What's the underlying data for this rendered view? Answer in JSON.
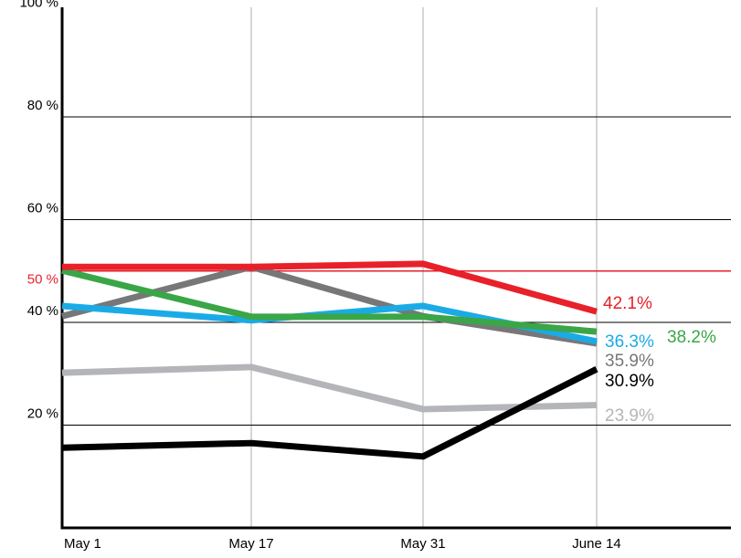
{
  "chart_data": {
    "type": "line",
    "categories": [
      "May 1",
      "May 17",
      "May 31",
      "June 14"
    ],
    "ylim": [
      0,
      100
    ],
    "yticks": [
      {
        "value": 20,
        "label": "20 %"
      },
      {
        "value": 40,
        "label": "40 %"
      },
      {
        "value": 60,
        "label": "60 %"
      },
      {
        "value": 80,
        "label": "80 %"
      },
      {
        "value": 100,
        "label": "100 %"
      }
    ],
    "grid": true,
    "reference_line": {
      "value": 50,
      "label": "50 %",
      "color": "#e8202a"
    },
    "series": [
      {
        "color": "#b3b5b8",
        "values": [
          30.2,
          31.3,
          23.1,
          23.9
        ],
        "value_labels": [
          null,
          null,
          null,
          "23.9%"
        ]
      },
      {
        "color": "#000000",
        "values": [
          15.6,
          16.5,
          13.9,
          30.9
        ],
        "value_labels": [
          null,
          null,
          null,
          "30.9%"
        ]
      },
      {
        "color": "#77777a",
        "values": [
          41.2,
          50.8,
          41.2,
          35.9
        ],
        "value_labels": [
          null,
          null,
          null,
          "35.9%"
        ]
      },
      {
        "color": "#1aabe6",
        "values": [
          43.2,
          40.4,
          43.2,
          36.3
        ],
        "value_labels": [
          null,
          null,
          null,
          "36.3%"
        ]
      },
      {
        "color": "#3aa647",
        "values": [
          50.1,
          41.1,
          41.1,
          38.2
        ],
        "value_labels": [
          null,
          null,
          null,
          "38.2%"
        ]
      },
      {
        "color": "#e8202a",
        "values": [
          50.8,
          50.8,
          51.4,
          42.1
        ],
        "value_labels": [
          null,
          null,
          null,
          "42.1%"
        ]
      }
    ]
  }
}
